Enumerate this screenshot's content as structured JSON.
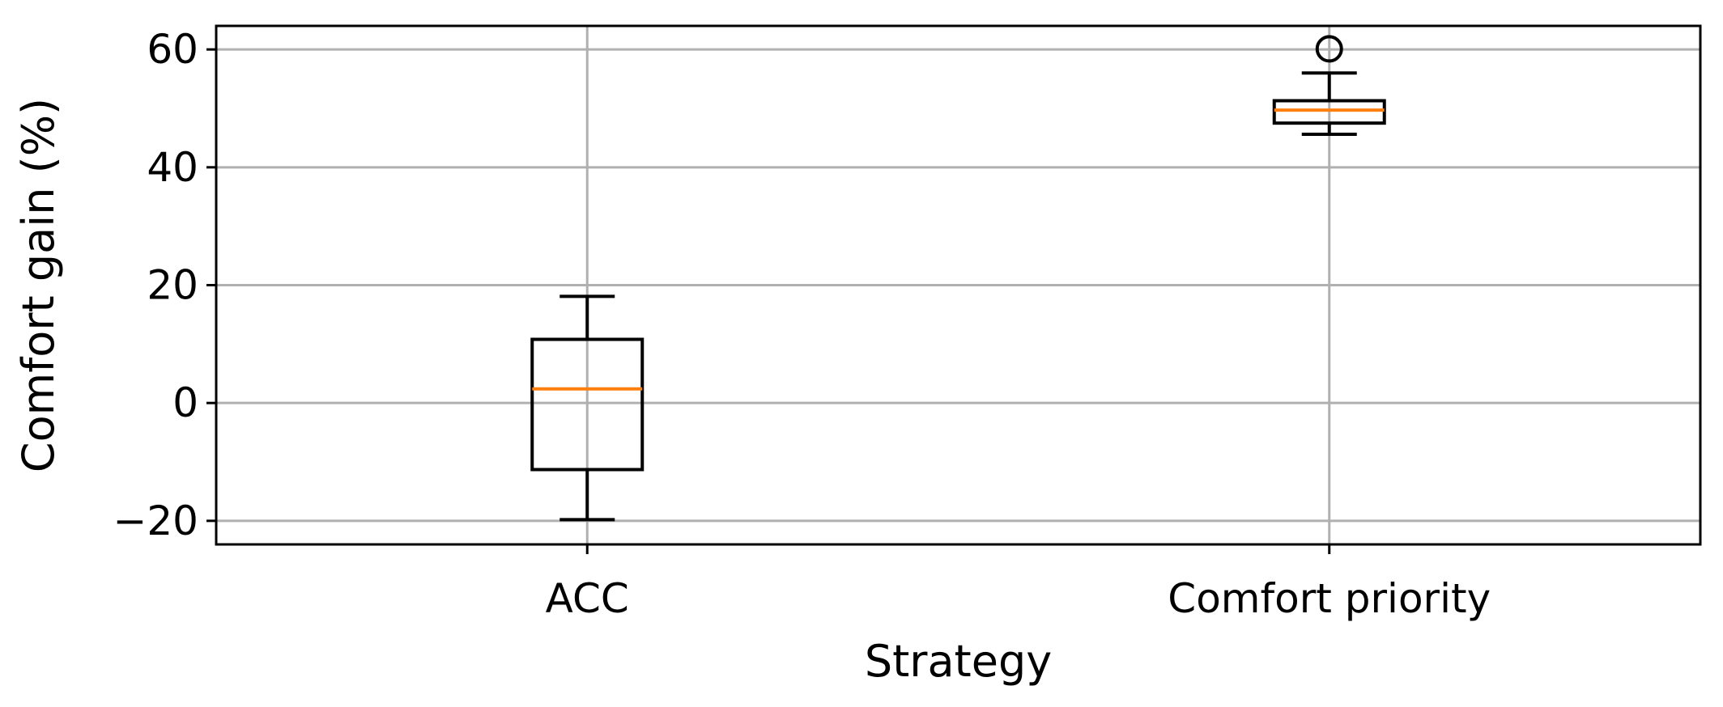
{
  "chart_data": {
    "type": "box",
    "title": "",
    "xlabel": "Strategy",
    "ylabel": "Comfort gain (%)",
    "categories": [
      "ACC",
      "Comfort priority"
    ],
    "ylim": [
      -24,
      64
    ],
    "yticks": [
      -20,
      0,
      20,
      40,
      60
    ],
    "ytick_labels": [
      "−20",
      "0",
      "20",
      "40",
      "60"
    ],
    "grid": true,
    "boxes": [
      {
        "category": "ACC",
        "whislo": -19.8,
        "q1": -11.3,
        "med": 2.4,
        "q3": 10.8,
        "whishi": 18.1,
        "fliers": []
      },
      {
        "category": "Comfort priority",
        "whislo": 45.6,
        "q1": 47.5,
        "med": 49.7,
        "q3": 51.3,
        "whishi": 56.0,
        "fliers": [
          60.1
        ]
      }
    ],
    "colors": {
      "box": "#000000",
      "median": "#ff7f0e",
      "grid": "#b0b0b0"
    }
  }
}
